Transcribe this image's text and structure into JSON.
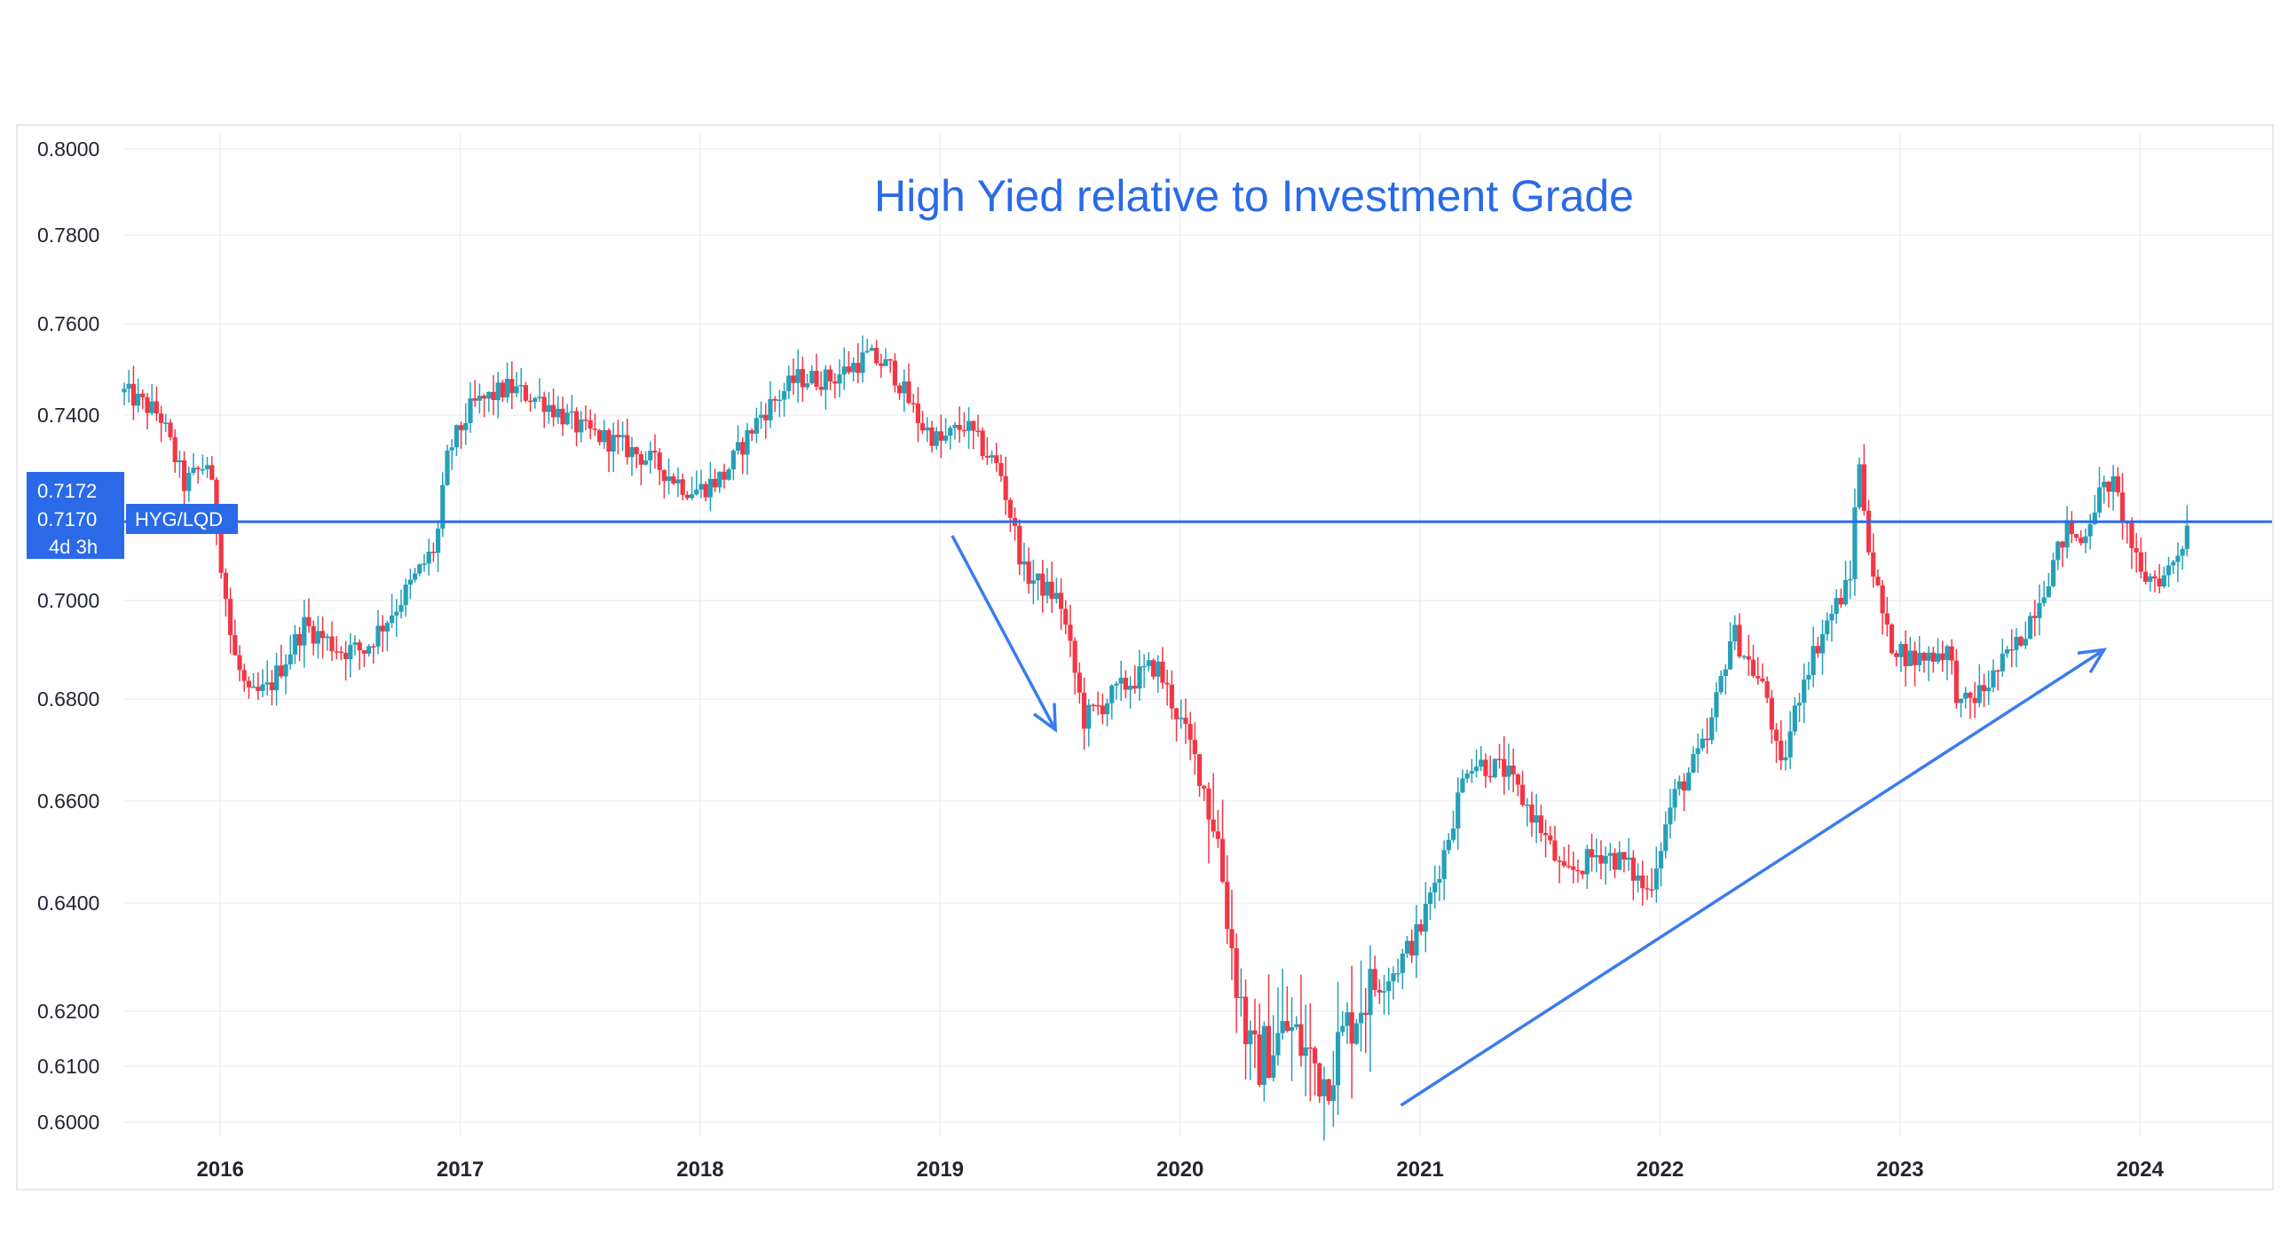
{
  "chart_data": {
    "type": "candlestick",
    "title": "High Yied relative to Investment Grade",
    "symbol": "HYG/LQD",
    "price_label": {
      "values": [
        "0.7172",
        "0.7170"
      ],
      "countdown": "4d 3h"
    },
    "horizontal_line_value": 0.717,
    "ylim": [
      0.6,
      0.8
    ],
    "y_ticks": [
      "0.8000",
      "0.7800",
      "0.7600",
      "0.7400",
      "0.7172",
      "0.7170",
      "0.7000",
      "0.6800",
      "0.6600",
      "0.6400",
      "0.6200",
      "0.6100",
      "0.6000"
    ],
    "y_tick_values": [
      0.8,
      0.78,
      0.76,
      0.74,
      0.7,
      0.68,
      0.66,
      0.64,
      0.62,
      0.61,
      0.6
    ],
    "x_ticks": [
      "2016",
      "2017",
      "2018",
      "2019",
      "2020",
      "2021",
      "2022",
      "2023",
      "2024"
    ],
    "x_range": [
      2015.6,
      2024.55
    ],
    "grid": true,
    "colors": {
      "up": "#26a0b8",
      "down": "#f23645",
      "accent": "#2a6ae8",
      "grid": "#eef0f4"
    },
    "path_points": [
      [
        2015.6,
        0.745
      ],
      [
        2015.75,
        0.74
      ],
      [
        2015.85,
        0.725
      ],
      [
        2015.95,
        0.73
      ],
      [
        2016.05,
        0.69
      ],
      [
        2016.12,
        0.68
      ],
      [
        2016.2,
        0.682
      ],
      [
        2016.35,
        0.695
      ],
      [
        2016.5,
        0.69
      ],
      [
        2016.6,
        0.69
      ],
      [
        2016.75,
        0.7
      ],
      [
        2016.9,
        0.712
      ],
      [
        2016.95,
        0.732
      ],
      [
        2017.05,
        0.742
      ],
      [
        2017.2,
        0.746
      ],
      [
        2017.35,
        0.743
      ],
      [
        2017.5,
        0.737
      ],
      [
        2017.65,
        0.734
      ],
      [
        2017.8,
        0.73
      ],
      [
        2017.95,
        0.724
      ],
      [
        2018.0,
        0.724
      ],
      [
        2018.1,
        0.727
      ],
      [
        2018.25,
        0.74
      ],
      [
        2018.4,
        0.748
      ],
      [
        2018.55,
        0.748
      ],
      [
        2018.7,
        0.753
      ],
      [
        2018.8,
        0.75
      ],
      [
        2018.92,
        0.738
      ],
      [
        2019.0,
        0.734
      ],
      [
        2019.1,
        0.738
      ],
      [
        2019.25,
        0.728
      ],
      [
        2019.35,
        0.706
      ],
      [
        2019.5,
        0.7
      ],
      [
        2019.6,
        0.676
      ],
      [
        2019.75,
        0.682
      ],
      [
        2019.9,
        0.687
      ],
      [
        2020.05,
        0.67
      ],
      [
        2020.15,
        0.655
      ],
      [
        2020.22,
        0.63
      ],
      [
        2020.3,
        0.61
      ],
      [
        2020.45,
        0.617
      ],
      [
        2020.6,
        0.608
      ],
      [
        2020.75,
        0.622
      ],
      [
        2020.9,
        0.628
      ],
      [
        2021.0,
        0.635
      ],
      [
        2021.1,
        0.65
      ],
      [
        2021.2,
        0.668
      ],
      [
        2021.35,
        0.666
      ],
      [
        2021.5,
        0.655
      ],
      [
        2021.6,
        0.645
      ],
      [
        2021.75,
        0.65
      ],
      [
        2021.85,
        0.648
      ],
      [
        2021.95,
        0.642
      ],
      [
        2022.05,
        0.66
      ],
      [
        2022.2,
        0.672
      ],
      [
        2022.3,
        0.694
      ],
      [
        2022.45,
        0.68
      ],
      [
        2022.5,
        0.665
      ],
      [
        2022.6,
        0.685
      ],
      [
        2022.7,
        0.696
      ],
      [
        2022.8,
        0.705
      ],
      [
        2022.82,
        0.733
      ],
      [
        2022.88,
        0.708
      ],
      [
        2022.95,
        0.692
      ],
      [
        2023.05,
        0.688
      ],
      [
        2023.2,
        0.69
      ],
      [
        2023.25,
        0.678
      ],
      [
        2023.35,
        0.682
      ],
      [
        2023.5,
        0.692
      ],
      [
        2023.6,
        0.703
      ],
      [
        2023.7,
        0.716
      ],
      [
        2023.75,
        0.712
      ],
      [
        2023.82,
        0.722
      ],
      [
        2023.88,
        0.726
      ],
      [
        2023.95,
        0.715
      ],
      [
        2024.0,
        0.705
      ],
      [
        2024.1,
        0.705
      ],
      [
        2024.18,
        0.713
      ],
      [
        2024.2,
        0.717
      ]
    ],
    "annotations": [
      {
        "type": "arrow",
        "from": [
          2019.05,
          0.714
        ],
        "to": [
          2019.48,
          0.674
        ]
      },
      {
        "type": "arrow",
        "from": [
          2020.92,
          0.603
        ],
        "to": [
          2023.85,
          0.69
        ]
      }
    ]
  }
}
